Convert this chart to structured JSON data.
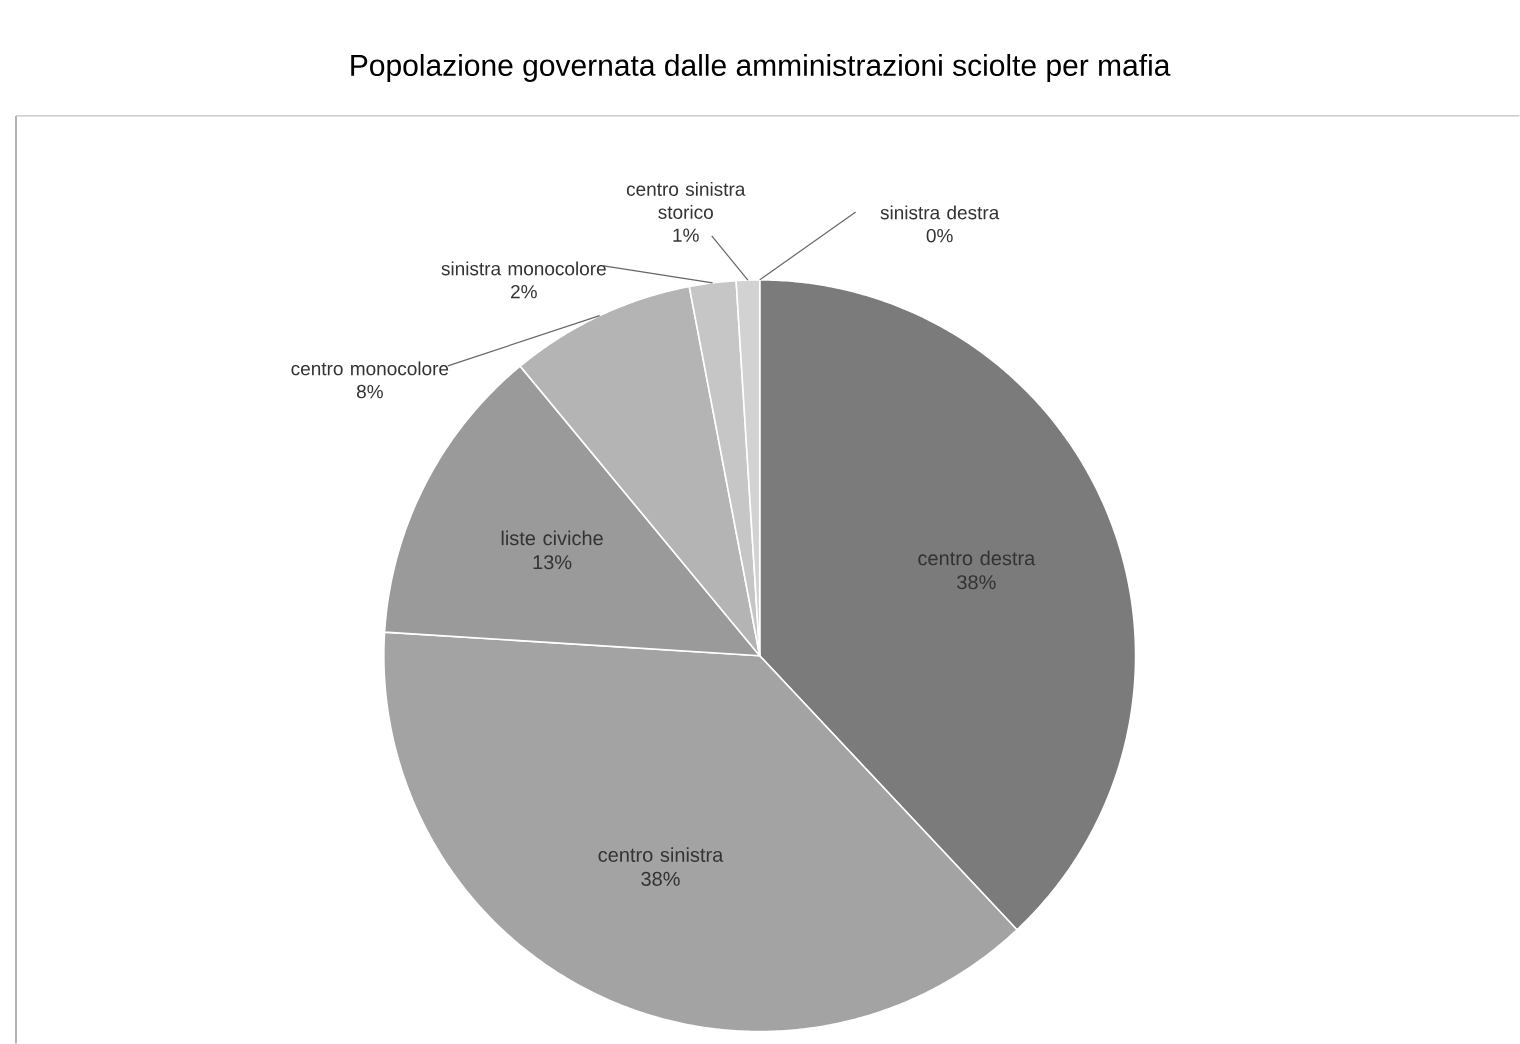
{
  "chart_data": {
    "type": "pie",
    "title": "Popolazione governata dalle amministrazioni sciolte per mafia",
    "categories": [
      "centro destra",
      "centro sinistra",
      "liste civiche",
      "centro monocolore",
      "sinistra monocolore",
      "centro sinistra storico",
      "sinistra destra"
    ],
    "values": [
      38,
      38,
      13,
      8,
      2,
      1,
      0
    ],
    "value_labels": [
      "38%",
      "38%",
      "13%",
      "8%",
      "2%",
      "1%",
      "0%"
    ],
    "colors": [
      "#7b7b7b",
      "#a3a3a3",
      "#9a9a9a",
      "#b4b4b4",
      "#c6c6c6",
      "#d2d2d2",
      "#e2e2e2"
    ]
  }
}
